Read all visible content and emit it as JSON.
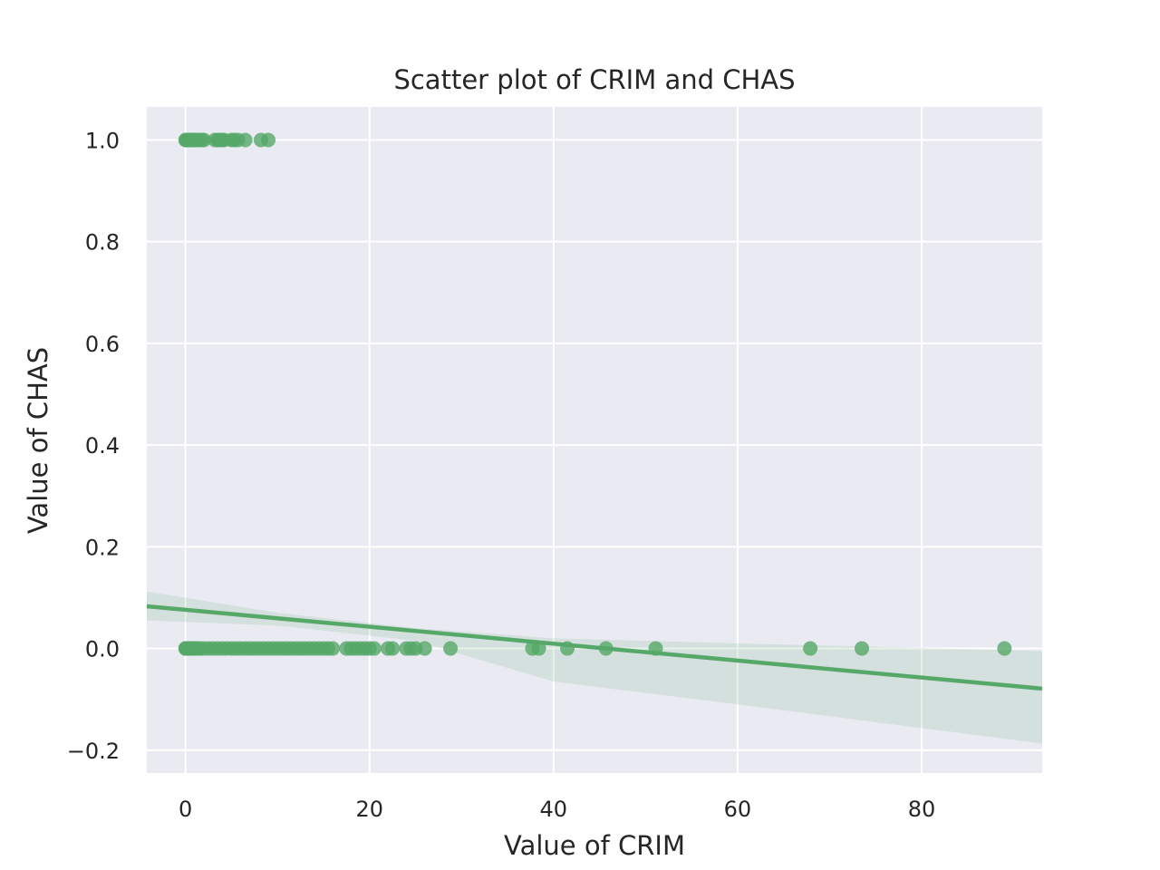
{
  "chart_data": {
    "type": "scatter",
    "title": "Scatter plot of CRIM and CHAS",
    "xlabel": "Value of CRIM",
    "ylabel": "Value of CHAS",
    "xlim": [
      -4.2,
      93.1
    ],
    "ylim": [
      -0.245,
      1.065
    ],
    "xticks": [
      0,
      20,
      40,
      60,
      80
    ],
    "xtick_labels": [
      "0",
      "20",
      "40",
      "60",
      "80"
    ],
    "yticks": [
      -0.2,
      0.0,
      0.2,
      0.4,
      0.6,
      0.8,
      1.0
    ],
    "ytick_labels": [
      "−0.2",
      "0.0",
      "0.2",
      "0.4",
      "0.6",
      "0.8",
      "1.0"
    ],
    "grid": true,
    "legend": "none",
    "colors": {
      "background": "#eaeaf2",
      "grid": "#ffffff",
      "points": "#55a868",
      "regression_line": "#55a868",
      "confidence_band": "#55a868"
    },
    "series": [
      {
        "x": [
          0.0,
          0.1,
          0.15,
          0.2,
          0.3,
          0.4,
          0.5,
          0.6,
          0.8,
          1.0,
          1.2,
          1.5,
          1.8,
          2.0,
          3.2,
          3.5,
          3.7,
          4.0,
          4.2,
          5.0,
          5.3,
          5.7,
          6.5,
          8.2,
          9.0,
          0.0,
          0.05,
          0.1,
          0.15,
          0.2,
          0.3,
          0.4,
          0.5,
          0.6,
          0.8,
          1.0,
          1.3,
          1.6,
          2.0,
          2.5,
          3.0,
          3.5,
          4.0,
          4.5,
          5.0,
          5.5,
          6.0,
          6.5,
          7.0,
          7.5,
          8.0,
          8.5,
          9.0,
          9.5,
          10.0,
          10.5,
          11.0,
          11.5,
          12.0,
          12.5,
          13.0,
          13.5,
          14.0,
          14.5,
          15.0,
          15.5,
          16.0,
          17.5,
          18.0,
          18.5,
          19.0,
          19.5,
          20.0,
          20.5,
          22.0,
          22.5,
          24.0,
          24.5,
          25.0,
          26.0,
          28.8,
          37.7,
          38.4,
          41.5,
          45.7,
          51.1,
          67.9,
          73.5,
          89.0
        ],
        "y": [
          1,
          1,
          1,
          1,
          1,
          1,
          1,
          1,
          1,
          1,
          1,
          1,
          1,
          1,
          1,
          1,
          1,
          1,
          1,
          1,
          1,
          1,
          1,
          1,
          1,
          0,
          0,
          0,
          0,
          0,
          0,
          0,
          0,
          0,
          0,
          0,
          0,
          0,
          0,
          0,
          0,
          0,
          0,
          0,
          0,
          0,
          0,
          0,
          0,
          0,
          0,
          0,
          0,
          0,
          0,
          0,
          0,
          0,
          0,
          0,
          0,
          0,
          0,
          0,
          0,
          0,
          0,
          0,
          0,
          0,
          0,
          0,
          0,
          0,
          0,
          0,
          0,
          0,
          0,
          0,
          0,
          0,
          0,
          0,
          0,
          0,
          0,
          0,
          0
        ]
      }
    ],
    "regression": {
      "x": [
        -4.2,
        93.1
      ],
      "y": [
        0.083,
        -0.079
      ],
      "ci_upper": [
        [
          -4.2,
          0.112
        ],
        [
          10,
          0.07
        ],
        [
          25,
          0.04
        ],
        [
          40,
          0.02
        ],
        [
          60,
          0.01
        ],
        [
          93.1,
          -0.005
        ]
      ],
      "ci_lower": [
        [
          93.1,
          -0.187
        ],
        [
          60,
          -0.11
        ],
        [
          40,
          -0.065
        ],
        [
          25,
          0.015
        ],
        [
          10,
          0.045
        ],
        [
          -4.2,
          0.055
        ]
      ]
    }
  }
}
